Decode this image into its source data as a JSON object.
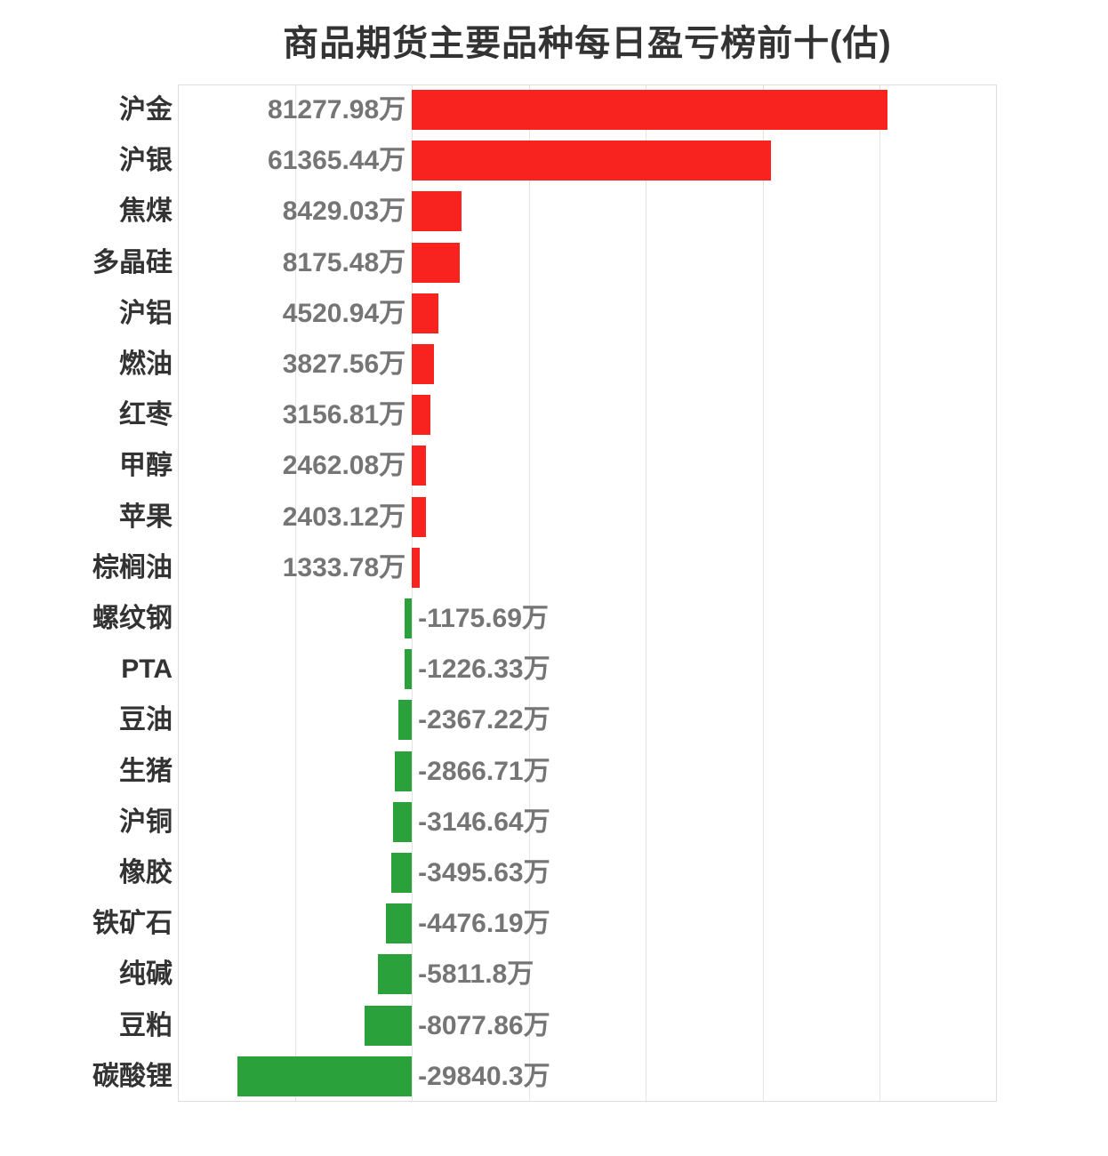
{
  "chart_data": {
    "type": "bar",
    "orientation": "horizontal",
    "title": "商品期货主要品种每日盈亏榜前十(估)",
    "unit": "万",
    "xlabel": "",
    "ylabel": "",
    "xlim": [
      -40000,
      100000
    ],
    "gridline_interval": 20000,
    "grid": true,
    "legend": "none",
    "categories": [
      "沪金",
      "沪银",
      "焦煤",
      "多晶硅",
      "沪铝",
      "燃油",
      "红枣",
      "甲醇",
      "苹果",
      "棕榈油",
      "螺纹钢",
      "PTA",
      "豆油",
      "生猪",
      "沪铜",
      "橡胶",
      "铁矿石",
      "纯碱",
      "豆粕",
      "碳酸锂"
    ],
    "values": [
      81277.98,
      61365.44,
      8429.03,
      8175.48,
      4520.94,
      3827.56,
      3156.81,
      2462.08,
      2403.12,
      1333.78,
      -1175.69,
      -1226.33,
      -2367.22,
      -2866.71,
      -3146.64,
      -3495.63,
      -4476.19,
      -5811.8,
      -8077.86,
      -29840.3
    ],
    "value_labels": [
      "81277.98万",
      "61365.44万",
      "8429.03万",
      "8175.48万",
      "4520.94万",
      "3827.56万",
      "3156.81万",
      "2462.08万",
      "2403.12万",
      "1333.78万",
      "-1175.69万",
      "-1226.33万",
      "-2367.22万",
      "-2866.71万",
      "-3146.64万",
      "-3495.63万",
      "-4476.19万",
      "-5811.8万",
      "-8077.86万",
      "-29840.3万"
    ],
    "colors": {
      "positive_bar": "#f8231f",
      "negative_bar": "#2ba13c",
      "title_text": "#333333",
      "category_text": "#333333",
      "value_text": "#757575",
      "gridline": "#e4e4e4",
      "plot_border": "#dedede",
      "background": "#ffffff"
    }
  }
}
